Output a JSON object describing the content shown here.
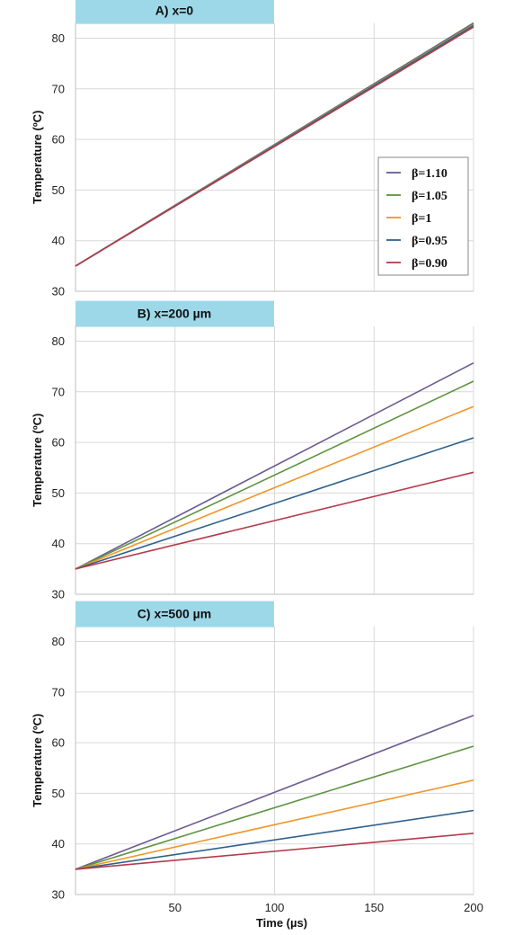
{
  "figure": {
    "xlabel": "Time (µs)",
    "ylabel": "Temperature (ºC)",
    "x_ticks": [
      50,
      100,
      150,
      200
    ],
    "y_ticks": [
      30,
      40,
      50,
      60,
      70,
      80
    ],
    "legend": [
      {
        "name": "β=1.10",
        "color": "#6a5a92"
      },
      {
        "name": "β=1.05",
        "color": "#5e9440"
      },
      {
        "name": "β=1",
        "color": "#f0962a"
      },
      {
        "name": "β=0.95",
        "color": "#2f618c"
      },
      {
        "name": "β=0.90",
        "color": "#b43a4c"
      }
    ],
    "title_box_color": "#9dd8e8"
  },
  "chart_data": [
    {
      "type": "line",
      "title": "A) x=0",
      "xlabel": "",
      "ylabel": "Temperature (ºC)",
      "xlim": [
        0,
        200
      ],
      "ylim": [
        30,
        83
      ],
      "grid": true,
      "legend_position": "right",
      "x": [
        0,
        200
      ],
      "series": [
        {
          "name": "β=1.10",
          "values": [
            35,
            83.0
          ]
        },
        {
          "name": "β=1.05",
          "values": [
            35,
            82.8
          ]
        },
        {
          "name": "β=1",
          "values": [
            35,
            82.6
          ]
        },
        {
          "name": "β=0.95",
          "values": [
            35,
            82.5
          ]
        },
        {
          "name": "β=0.90",
          "values": [
            35,
            82.2
          ]
        }
      ]
    },
    {
      "type": "line",
      "title": "B) x=200 µm",
      "xlabel": "",
      "ylabel": "Temperature (ºC)",
      "xlim": [
        0,
        200
      ],
      "ylim": [
        30,
        83
      ],
      "grid": true,
      "x": [
        0,
        200
      ],
      "series": [
        {
          "name": "β=1.10",
          "values": [
            35,
            75.7
          ]
        },
        {
          "name": "β=1.05",
          "values": [
            35,
            72.1
          ]
        },
        {
          "name": "β=1",
          "values": [
            35,
            67.1
          ]
        },
        {
          "name": "β=0.95",
          "values": [
            35,
            60.9
          ]
        },
        {
          "name": "β=0.90",
          "values": [
            35,
            54.1
          ]
        }
      ]
    },
    {
      "type": "line",
      "title": "C) x=500 µm",
      "xlabel": "Time (µs)",
      "ylabel": "Temperature (ºC)",
      "xlim": [
        0,
        200
      ],
      "ylim": [
        30,
        83
      ],
      "grid": true,
      "x": [
        0,
        200
      ],
      "series": [
        {
          "name": "β=1.10",
          "values": [
            35,
            65.4
          ]
        },
        {
          "name": "β=1.05",
          "values": [
            35,
            59.3
          ]
        },
        {
          "name": "β=1",
          "values": [
            35,
            52.6
          ]
        },
        {
          "name": "β=0.95",
          "values": [
            35,
            46.6
          ]
        },
        {
          "name": "β=0.90",
          "values": [
            35,
            42.1
          ]
        }
      ]
    }
  ]
}
